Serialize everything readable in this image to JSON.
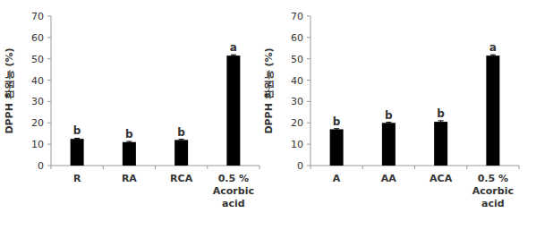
{
  "chart_data": [
    {
      "type": "bar",
      "y_label": "DPPH 환원능 (%)",
      "categories": [
        "R",
        "RA",
        "RCA",
        "0.5 %\nAcorbic\nacid"
      ],
      "values": [
        12.5,
        11,
        12,
        51.5
      ],
      "errors": [
        0.3,
        0.3,
        0.3,
        0.4
      ],
      "letters": [
        "b",
        "b",
        "b",
        "a"
      ],
      "color": "#000000",
      "ylim": [
        0,
        70
      ],
      "yticks": [
        0,
        10,
        20,
        30,
        40,
        50,
        60,
        70
      ],
      "grid": false
    },
    {
      "type": "bar",
      "y_label": "DPPH 환원능 (%)",
      "categories": [
        "A",
        "AA",
        "ACA",
        "0.5 %\nAcorbic\nacid"
      ],
      "values": [
        17,
        20,
        20.5,
        51.5
      ],
      "errors": [
        0.3,
        0.3,
        0.5,
        0.4
      ],
      "letters": [
        "b",
        "b",
        "b",
        "a"
      ],
      "color": "#000000",
      "ylim": [
        0,
        70
      ],
      "yticks": [
        0,
        10,
        20,
        30,
        40,
        50,
        60,
        70
      ],
      "grid": false
    }
  ]
}
